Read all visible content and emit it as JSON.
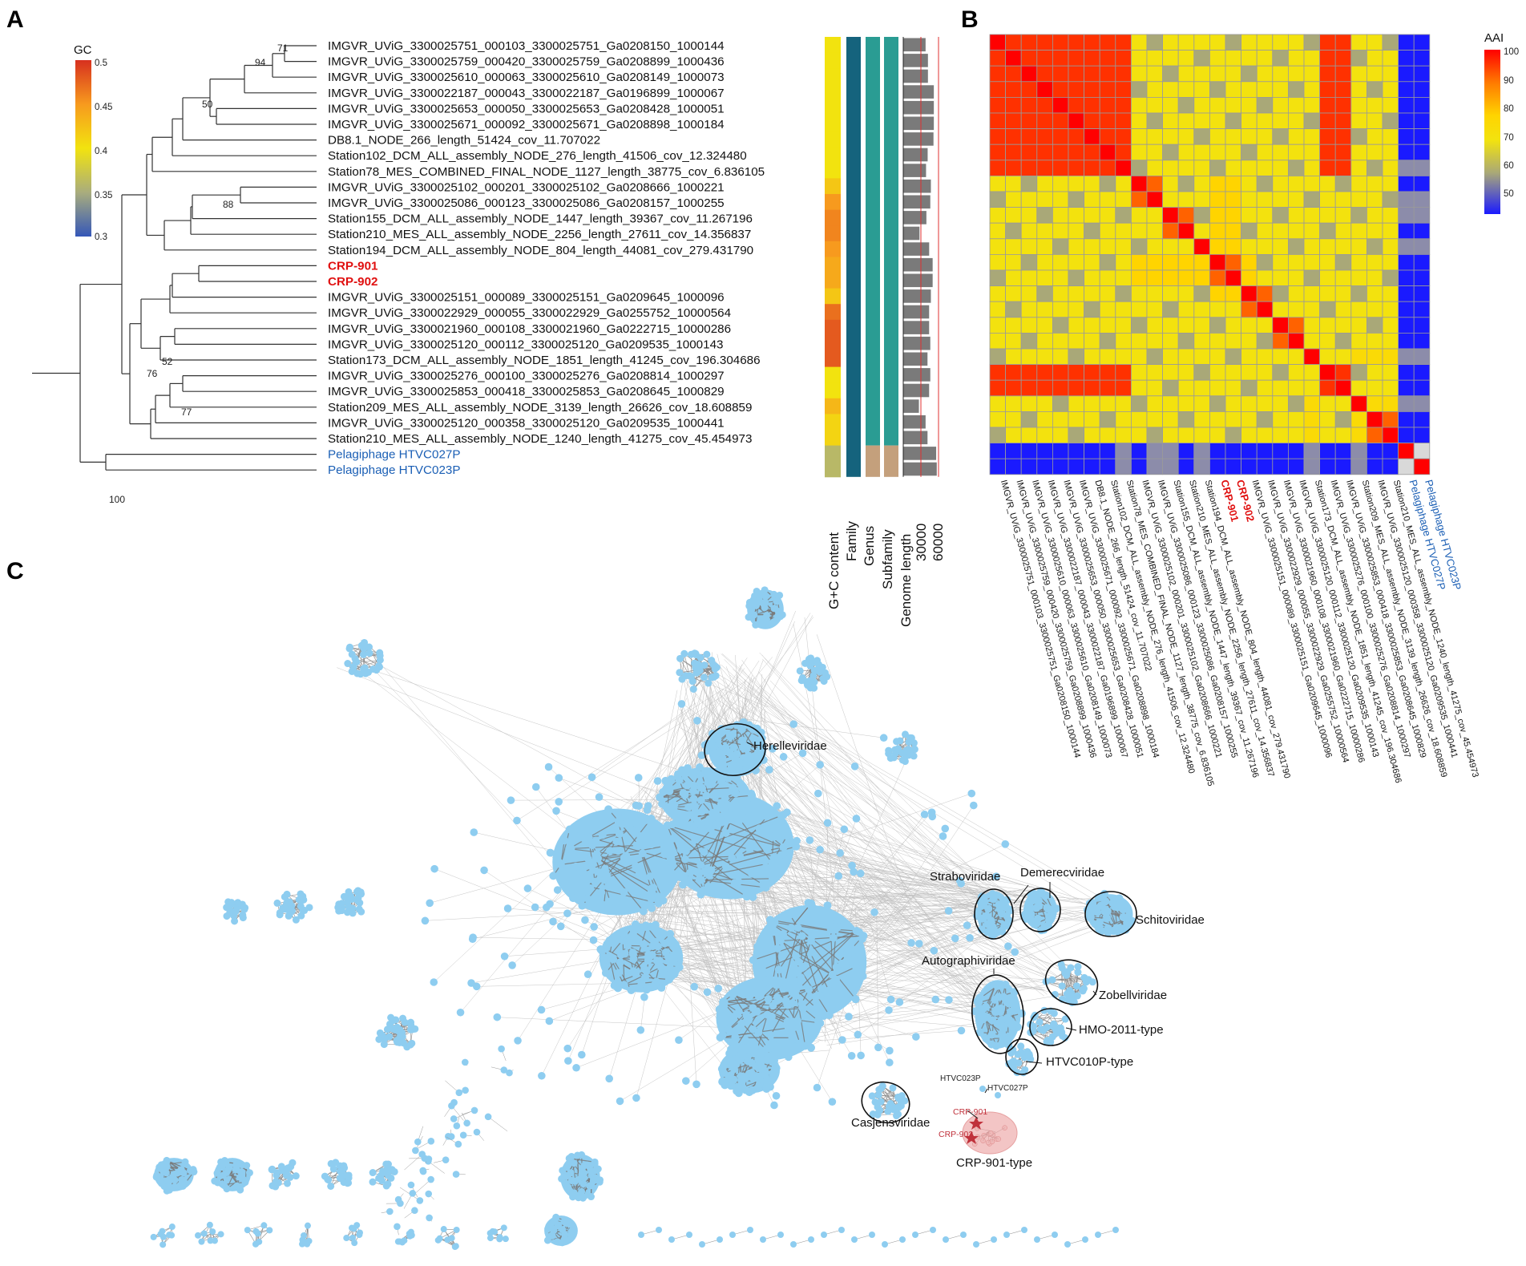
{
  "panels": {
    "a": "A",
    "b": "B",
    "c": "C"
  },
  "panel_a": {
    "gc_legend": {
      "title": "GC",
      "ticks": [
        "0.5",
        "0.45",
        "0.4",
        "0.35",
        "0.3"
      ],
      "colors": [
        "#d7301f",
        "#f79a1e",
        "#f2e30f",
        "#a9ad7d",
        "#3557b8"
      ]
    },
    "leaves": [
      {
        "label": "IMGVR_UViG_3300025751_000103_3300025751_Ga0208150_1000144",
        "style": "normal"
      },
      {
        "label": "IMGVR_UViG_3300025759_000420_3300025759_Ga0208899_1000436",
        "style": "normal"
      },
      {
        "label": "IMGVR_UViG_3300025610_000063_3300025610_Ga0208149_1000073",
        "style": "normal"
      },
      {
        "label": "IMGVR_UViG_3300022187_000043_3300022187_Ga0196899_1000067",
        "style": "normal"
      },
      {
        "label": "IMGVR_UViG_3300025653_000050_3300025653_Ga0208428_1000051",
        "style": "normal"
      },
      {
        "label": "IMGVR_UViG_3300025671_000092_3300025671_Ga0208898_1000184",
        "style": "normal"
      },
      {
        "label": "DB8.1_NODE_266_length_51424_cov_11.707022",
        "style": "normal"
      },
      {
        "label": "Station102_DCM_ALL_assembly_NODE_276_length_41506_cov_12.324480",
        "style": "normal"
      },
      {
        "label": "Station78_MES_COMBINED_FINAL_NODE_1127_length_38775_cov_6.836105",
        "style": "normal"
      },
      {
        "label": "IMGVR_UViG_3300025102_000201_3300025102_Ga0208666_1000221",
        "style": "normal"
      },
      {
        "label": "IMGVR_UViG_3300025086_000123_3300025086_Ga0208157_1000255",
        "style": "normal"
      },
      {
        "label": "Station155_DCM_ALL_assembly_NODE_1447_length_39367_cov_11.267196",
        "style": "normal"
      },
      {
        "label": "Station210_MES_ALL_assembly_NODE_2256_length_27611_cov_14.356837",
        "style": "normal"
      },
      {
        "label": "Station194_DCM_ALL_assembly_NODE_804_length_44081_cov_279.431790",
        "style": "normal"
      },
      {
        "label": "CRP-901",
        "style": "red"
      },
      {
        "label": "CRP-902",
        "style": "red"
      },
      {
        "label": "IMGVR_UViG_3300025151_000089_3300025151_Ga0209645_1000096",
        "style": "normal"
      },
      {
        "label": "IMGVR_UViG_3300022929_000055_3300022929_Ga0255752_10000564",
        "style": "normal"
      },
      {
        "label": "IMGVR_UViG_3300021960_000108_3300021960_Ga0222715_10000286",
        "style": "normal"
      },
      {
        "label": "IMGVR_UViG_3300025120_000112_3300025120_Ga0209535_1000143",
        "style": "normal"
      },
      {
        "label": "Station173_DCM_ALL_assembly_NODE_1851_length_41245_cov_196.304686",
        "style": "normal"
      },
      {
        "label": "IMGVR_UViG_3300025276_000100_3300025276_Ga0208814_1000297",
        "style": "normal"
      },
      {
        "label": "IMGVR_UViG_3300025853_000418_3300025853_Ga0208645_1000829",
        "style": "normal"
      },
      {
        "label": "Station209_MES_ALL_assembly_NODE_3139_length_26626_cov_18.608859",
        "style": "normal"
      },
      {
        "label": "IMGVR_UViG_3300025120_000358_3300025120_Ga0209535_1000441",
        "style": "normal"
      },
      {
        "label": "Station210_MES_ALL_assembly_NODE_1240_length_41275_cov_45.454973",
        "style": "normal"
      },
      {
        "label": "Pelagiphage HTVC027P",
        "style": "blue"
      },
      {
        "label": "Pelagiphage HTVC023P",
        "style": "blue"
      }
    ],
    "bootstrap": [
      "71",
      "94",
      "50",
      "88",
      "52",
      "76",
      "77",
      "100"
    ],
    "annotation_columns": [
      "G+C content",
      "Family",
      "Genus",
      "Subfamily",
      "Genome length"
    ],
    "length_axis_ticks": [
      "30000",
      "60000"
    ],
    "gc_values": [
      0.4,
      0.4,
      0.4,
      0.4,
      0.4,
      0.4,
      0.4,
      0.4,
      0.4,
      0.42,
      0.45,
      0.46,
      0.46,
      0.45,
      0.44,
      0.44,
      0.42,
      0.47,
      0.48,
      0.48,
      0.48,
      0.4,
      0.4,
      0.43,
      0.41,
      0.41,
      0.36,
      0.36
    ],
    "genome_lengths": [
      38000,
      42000,
      42000,
      52000,
      52000,
      52000,
      51424,
      41506,
      38775,
      47000,
      46000,
      39367,
      27611,
      44081,
      50000,
      50000,
      47000,
      44000,
      44000,
      46000,
      41245,
      46000,
      44000,
      26626,
      38000,
      41275,
      56000,
      57000
    ],
    "family_color": "#15637d",
    "genus_color": "#2a9c93",
    "subfamily_color": "#2a9c93",
    "pelagiphage_group_color": "#c4a07c"
  },
  "panel_b": {
    "legend_title": "AAI",
    "legend_ticks": [
      "100",
      "90",
      "80",
      "70",
      "60",
      "50"
    ],
    "legend_colors": [
      "#ff0000",
      "#ff7a00",
      "#ffd400",
      "#f2e30f",
      "#a9a878",
      "#1a1aff"
    ],
    "x_labels": [
      "IMGVR_UViG_3300025751_000103_3300025751_Ga0208150_1000144",
      "IMGVR_UViG_3300025759_000420_3300025759_Ga0208899_1000436",
      "IMGVR_UViG_3300025610_000063_3300025610_Ga0208149_1000073",
      "IMGVR_UViG_3300022187_000043_3300022187_Ga0196899_1000067",
      "IMGVR_UViG_3300025653_000050_3300025653_Ga0208428_1000051",
      "IMGVR_UViG_3300025671_000092_3300025671_Ga0208898_1000184",
      "DB8.1_NODE_266_length_51424_cov_11.707022",
      "Station102_DCM_ALL_assembly_NODE_276_length_41506_cov_12.324480",
      "Station78_MES_COMBINED_FINAL_NODE_1127_length_38775_cov_6.836105",
      "IMGVR_UViG_3300025102_000201_3300025102_Ga0208666_1000221",
      "IMGVR_UViG_3300025086_000123_3300025086_Ga0208157_1000255",
      "Station155_DCM_ALL_assembly_NODE_1447_length_39367_cov_11.267196",
      "Station210_MES_ALL_assembly_NODE_2256_length_27611_cov_14.356837",
      "Station194_DCM_ALL_assembly_NODE_804_length_44081_cov_279.431790",
      "CRP-901",
      "CRP-902",
      "IMGVR_UViG_3300025151_000089_3300025151_Ga0209645_1000096",
      "IMGVR_UViG_3300022929_000055_3300022929_Ga0255752_10000564",
      "IMGVR_UViG_3300021960_000108_3300021960_Ga0222715_10000286",
      "IMGVR_UViG_3300025120_000112_3300025120_Ga0209535_1000143",
      "Station173_DCM_ALL_assembly_NODE_1851_length_41245_cov_196.304686",
      "IMGVR_UViG_3300025276_000100_3300025276_Ga0208814_1000297",
      "IMGVR_UViG_3300025853_000418_3300025853_Ga0208645_1000829",
      "Station209_MES_ALL_assembly_NODE_3139_length_26626_cov_18.608859",
      "IMGVR_UViG_3300025120_000358_3300025120_Ga0209535_1000441",
      "Station210_MES_ALL_assembly_NODE_1240_length_41275_cov_45.454973",
      "Pelagiphage HTVC027P",
      "Pelagiphage HTVC023P"
    ]
  },
  "panel_c": {
    "cluster_labels": [
      {
        "text": "Herelleviridae",
        "style": "normal"
      },
      {
        "text": "Straboviridae",
        "style": "normal"
      },
      {
        "text": "Demerecviridae",
        "style": "normal"
      },
      {
        "text": "Schitoviridae",
        "style": "normal"
      },
      {
        "text": "Autographiviridae",
        "style": "normal"
      },
      {
        "text": "Zobellviridae",
        "style": "normal"
      },
      {
        "text": "HMO-2011-type",
        "style": "normal"
      },
      {
        "text": "HTVC010P-type",
        "style": "normal"
      },
      {
        "text": "Casjensviridae",
        "style": "normal"
      },
      {
        "text": "CRP-901-type",
        "style": "normal"
      }
    ],
    "node_labels": [
      "HTVC023P",
      "HTVC027P",
      "CRP-901",
      "CRP-902"
    ],
    "node_color": "#8ecdf0",
    "edge_color": "#8a8a8a",
    "highlight_color": "#f3c5c5"
  }
}
